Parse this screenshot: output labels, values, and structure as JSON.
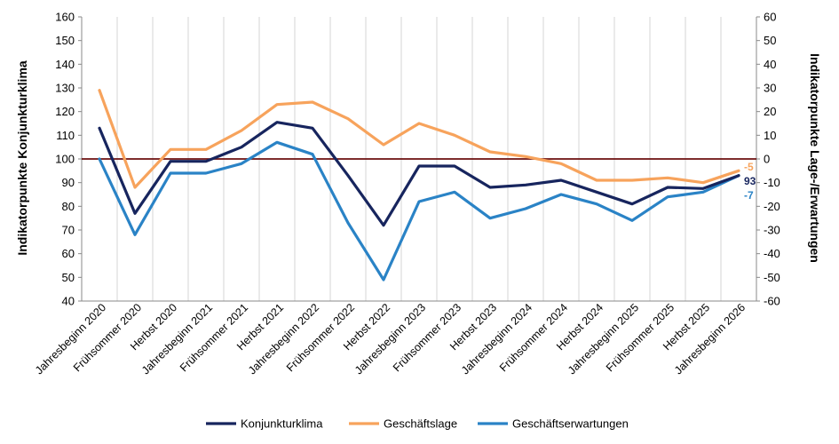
{
  "chart_data": {
    "type": "line",
    "categories": [
      "Jahresbeginn 2020",
      "Frühsommer 2020",
      "Herbst 2020",
      "Jahresbeginn 2021",
      "Frühsommer 2021",
      "Herbst 2021",
      "Jahresbeginn 2022",
      "Frühsommer 2022",
      "Herbst 2022",
      "Jahresbeginn 2023",
      "Frühsommer 2023",
      "Herbst 2023",
      "Jahresbeginn 2024",
      "Frühsommer 2024",
      "Herbst 2024",
      "Jahresbeginn 2025",
      "Frühsommer 2025",
      "Herbst 2025",
      "Jahresbeginn 2026"
    ],
    "ylabel_left": "Indikatorpunkte Konjunkturklima",
    "ylabel_right": "Indikatorpunkte Lage-/Erwartungen",
    "ylim_left": [
      40,
      160
    ],
    "ylim_right": [
      -60,
      60
    ],
    "yticks_left": [
      "40",
      "50",
      "60",
      "70",
      "80",
      "90",
      "100",
      "110",
      "120",
      "130",
      "140",
      "150",
      "160"
    ],
    "yticks_right": [
      "-60",
      "-50",
      "-40",
      "-30",
      "-20",
      "-10",
      "0",
      "10",
      "20",
      "30",
      "40",
      "50",
      "60"
    ],
    "reference_line": 100,
    "series": [
      {
        "name": "Konjunkturklima",
        "axis": "left",
        "color": "#17255e",
        "values": [
          113,
          77,
          99,
          99,
          105,
          115.5,
          113,
          93,
          72,
          97,
          97,
          88,
          89,
          91,
          86,
          81,
          88,
          87.5,
          93
        ],
        "end_label": "93"
      },
      {
        "name": "Geschäftslage",
        "axis": "right",
        "color": "#f7a35c",
        "values": [
          29,
          -12,
          4,
          4,
          12,
          23,
          24,
          17,
          6,
          15,
          10,
          3,
          1,
          -2,
          -9,
          -9,
          -8,
          -10,
          -5
        ],
        "end_label": "-5"
      },
      {
        "name": "Geschäftserwartungen",
        "axis": "right",
        "color": "#2a83c6",
        "values": [
          0,
          -32,
          -6,
          -6,
          -2,
          7,
          2,
          -27,
          -51,
          -18,
          -14,
          -25,
          -21,
          -15,
          -19,
          -26,
          -16,
          -14,
          -7
        ],
        "end_label": "-7"
      }
    ],
    "legend_position": "bottom",
    "grid": "vertical"
  }
}
